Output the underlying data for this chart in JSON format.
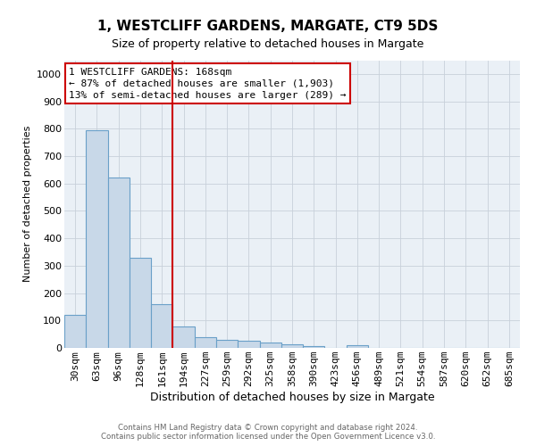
{
  "title": "1, WESTCLIFF GARDENS, MARGATE, CT9 5DS",
  "subtitle": "Size of property relative to detached houses in Margate",
  "xlabel": "Distribution of detached houses by size in Margate",
  "ylabel": "Number of detached properties",
  "footnote1": "Contains HM Land Registry data © Crown copyright and database right 2024.",
  "footnote2": "Contains public sector information licensed under the Open Government Licence v3.0.",
  "categories": [
    "30sqm",
    "63sqm",
    "96sqm",
    "128sqm",
    "161sqm",
    "194sqm",
    "227sqm",
    "259sqm",
    "292sqm",
    "325sqm",
    "358sqm",
    "390sqm",
    "423sqm",
    "456sqm",
    "489sqm",
    "521sqm",
    "554sqm",
    "587sqm",
    "620sqm",
    "652sqm",
    "685sqm"
  ],
  "values": [
    122,
    793,
    621,
    329,
    160,
    78,
    39,
    28,
    25,
    18,
    13,
    8,
    0,
    9,
    0,
    0,
    0,
    0,
    0,
    0,
    0
  ],
  "bar_color": "#c8d8e8",
  "bar_edge_color": "#6aa0c8",
  "reference_line_x": 4.5,
  "reference_line_color": "#cc0000",
  "annotation_line1": "1 WESTCLIFF GARDENS: 168sqm",
  "annotation_line2": "← 87% of detached houses are smaller (1,903)",
  "annotation_line3": "13% of semi-detached houses are larger (289) →",
  "annotation_box_color": "#cc0000",
  "ylim": [
    0,
    1050
  ],
  "yticks": [
    0,
    100,
    200,
    300,
    400,
    500,
    600,
    700,
    800,
    900,
    1000
  ],
  "grid_color": "#c8d0da",
  "background_color": "#eaf0f6",
  "title_fontsize": 11,
  "subtitle_fontsize": 9,
  "xlabel_fontsize": 9,
  "ylabel_fontsize": 8,
  "tick_fontsize": 8,
  "annotation_fontsize": 8
}
